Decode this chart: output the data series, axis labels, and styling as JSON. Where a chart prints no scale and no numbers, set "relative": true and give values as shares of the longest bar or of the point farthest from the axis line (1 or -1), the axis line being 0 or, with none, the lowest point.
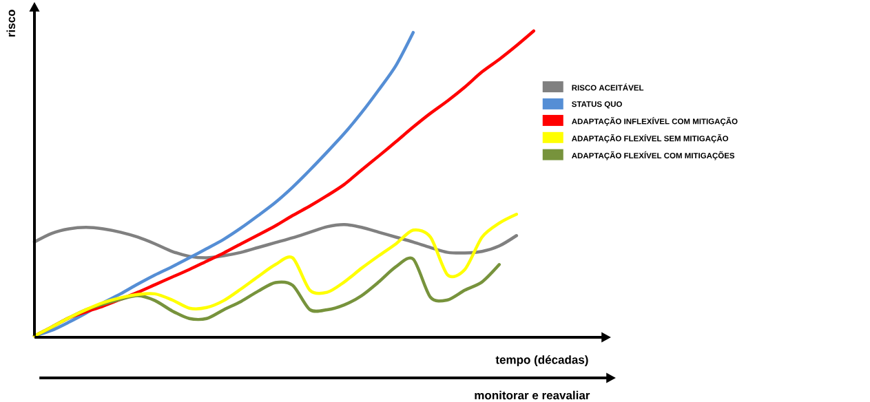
{
  "chart_data": {
    "type": "line",
    "relative": true,
    "xlabel": "tempo (décadas)",
    "ylabel": "risco",
    "annotations": [
      "monitorar e reavaliar"
    ],
    "categories": [
      null,
      null,
      null,
      null,
      null,
      null,
      null,
      null,
      null,
      null,
      null,
      null,
      null,
      null,
      null,
      null,
      null,
      null,
      null,
      null,
      null,
      null,
      null,
      null,
      null,
      null,
      null,
      null,
      null,
      null,
      null
    ],
    "legend": "right",
    "line_style": "solid",
    "marker": "none",
    "series": [
      {
        "name": "RISCO ACEITÁVEL",
        "color": "#808080",
        "values": [
          0.308,
          0.336,
          0.351,
          0.356,
          0.351,
          0.34,
          0.324,
          0.302,
          0.277,
          0.261,
          0.256,
          0.263,
          0.274,
          0.29,
          0.306,
          0.322,
          0.34,
          0.358,
          0.365,
          0.356,
          0.34,
          0.324,
          0.308,
          0.29,
          0.274,
          0.272,
          0.277,
          0.295,
          0.329,
          null,
          null
        ]
      },
      {
        "name": "STATUS QUO",
        "color": "#558ed5",
        "values": [
          0,
          0.018,
          0.045,
          0.075,
          0.109,
          0.138,
          0.17,
          0.2,
          0.227,
          0.256,
          0.286,
          0.317,
          0.354,
          0.395,
          0.438,
          0.488,
          0.544,
          0.603,
          0.664,
          0.732,
          0.807,
          0.887,
          0.995,
          null,
          null,
          null,
          null,
          null,
          null,
          null,
          null
        ]
      },
      {
        "name": "ADAPTAÇÃO INFLEXÍVEL COM MITIGAÇÃO",
        "color": "#ff0000",
        "values": [
          0,
          0.029,
          0.059,
          0.079,
          0.098,
          0.12,
          0.143,
          0.168,
          0.193,
          0.218,
          0.245,
          0.272,
          0.302,
          0.331,
          0.361,
          0.395,
          0.426,
          0.46,
          0.497,
          0.544,
          0.59,
          0.637,
          0.685,
          0.73,
          0.771,
          0.816,
          0.866,
          0.907,
          0.952,
          1.0,
          null
        ]
      },
      {
        "name": "ADAPTAÇÃO FLEXÍVEL SEM MITIGAÇÃO",
        "color": "#ffff00",
        "values": [
          0,
          0.029,
          0.059,
          0.086,
          0.109,
          0.125,
          0.136,
          0.138,
          0.118,
          0.091,
          0.093,
          0.116,
          0.154,
          0.195,
          0.234,
          0.256,
          0.15,
          0.143,
          0.177,
          0.222,
          0.263,
          0.302,
          0.347,
          0.324,
          0.2,
          0.218,
          0.324,
          0.37,
          0.399,
          null,
          null
        ]
      },
      {
        "name": "ADAPTAÇÃO FLEXÍVEL COM MITIGAÇÕES",
        "color": "#77933c",
        "values": [
          0,
          0.029,
          0.059,
          0.086,
          0.104,
          0.12,
          0.132,
          0.116,
          0.082,
          0.057,
          0.057,
          0.086,
          0.113,
          0.147,
          0.175,
          0.166,
          0.086,
          0.086,
          0.102,
          0.132,
          0.177,
          0.227,
          0.252,
          0.127,
          0.118,
          0.15,
          0.177,
          0.234,
          null,
          null,
          null
        ]
      }
    ]
  }
}
